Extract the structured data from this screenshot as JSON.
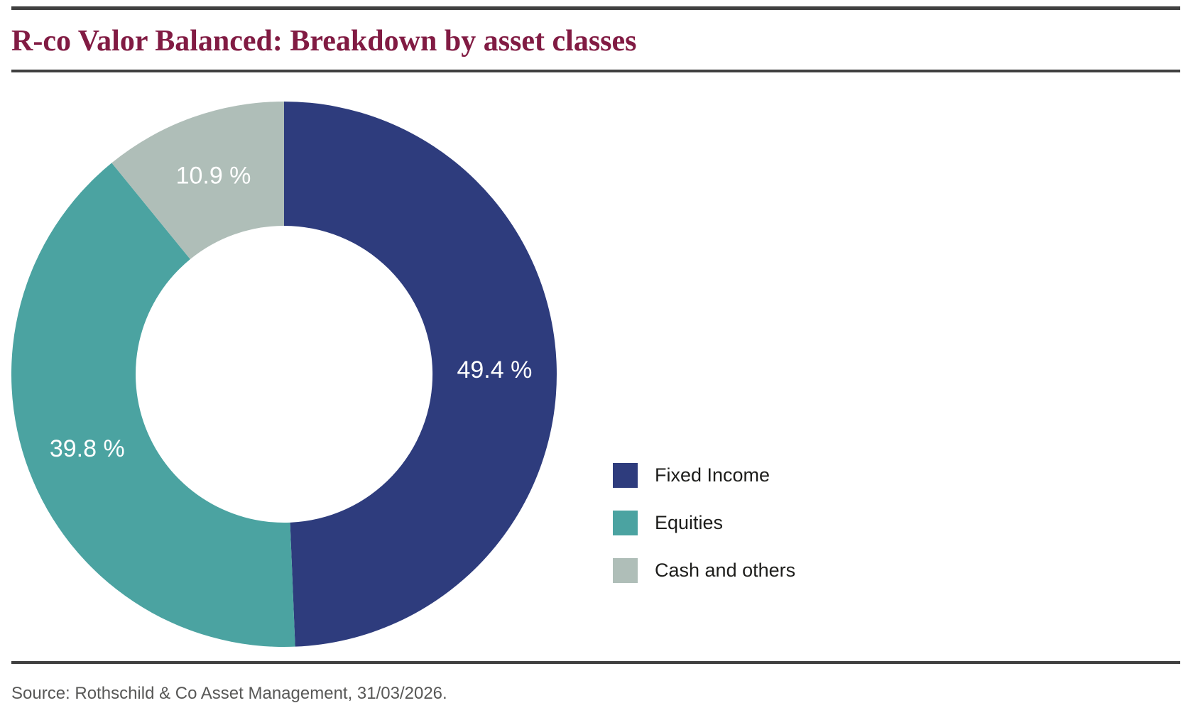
{
  "title": "R-co Valor Balanced: Breakdown by asset classes",
  "source": "Source: Rothschild & Co Asset Management, 31/03/2026.",
  "colors": {
    "title": "#811B43",
    "rule": "#404040",
    "legend_text": "#1D1D1B",
    "source_text": "#585857",
    "slice_label_text": "#FFFFFF",
    "background": "#FFFFFF"
  },
  "chart_data": {
    "type": "pie",
    "subtype": "donut",
    "title": "R-co Valor Balanced: Breakdown by asset classes",
    "categories": [
      "Fixed Income",
      "Equities",
      "Cash and others"
    ],
    "values": [
      49.4,
      39.8,
      10.9
    ],
    "labels": [
      "49.4 %",
      "39.8 %",
      "10.9 %"
    ],
    "colors": [
      "#2E3C7D",
      "#4BA3A1",
      "#AFBEB8"
    ],
    "unit": "%",
    "start_angle": 0,
    "direction": "clockwise",
    "inner_radius_ratio": 0.545,
    "legend_position": "right",
    "grid": false
  },
  "legend": {
    "items": [
      {
        "label": "Fixed Income"
      },
      {
        "label": "Equities"
      },
      {
        "label": "Cash and others"
      }
    ]
  }
}
